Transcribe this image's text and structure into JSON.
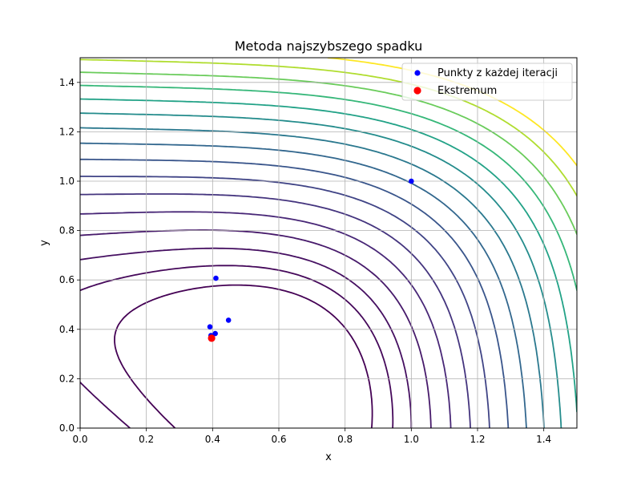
{
  "chart_data": {
    "type": "scatter",
    "title": "Metoda najszybszego spadku",
    "xlabel": "x",
    "ylabel": "y",
    "xlim": [
      0.0,
      1.5
    ],
    "ylim": [
      0.0,
      1.5
    ],
    "xticks": [
      "0.0",
      "0.2",
      "0.4",
      "0.6",
      "0.8",
      "1.0",
      "1.2",
      "1.4"
    ],
    "yticks": [
      "0.0",
      "0.2",
      "0.4",
      "0.6",
      "0.8",
      "1.0",
      "1.2",
      "1.4"
    ],
    "grid": true,
    "legend_position": "upper right",
    "contour": {
      "function": "x^4 + y^4 - x - y + x*y + y^2 (approx.)",
      "levels": [
        -0.28,
        -0.15,
        0.0,
        0.2,
        0.45,
        0.75,
        1.1,
        1.5,
        1.95,
        2.45,
        3.0,
        3.6,
        4.25,
        4.95,
        5.7,
        6.5
      ],
      "colormap": "viridis"
    },
    "series": [
      {
        "name": "Punkty z każdej iteracji",
        "color": "#0000ff",
        "points": [
          {
            "x": 1.0,
            "y": 1.0
          },
          {
            "x": 0.41,
            "y": 0.607
          },
          {
            "x": 0.448,
            "y": 0.437
          },
          {
            "x": 0.408,
            "y": 0.383
          },
          {
            "x": 0.392,
            "y": 0.41
          },
          {
            "x": 0.395,
            "y": 0.375
          },
          {
            "x": 0.398,
            "y": 0.369
          }
        ]
      },
      {
        "name": "Ekstremum",
        "color": "#ff0000",
        "points": [
          {
            "x": 0.397,
            "y": 0.364
          }
        ]
      }
    ]
  }
}
